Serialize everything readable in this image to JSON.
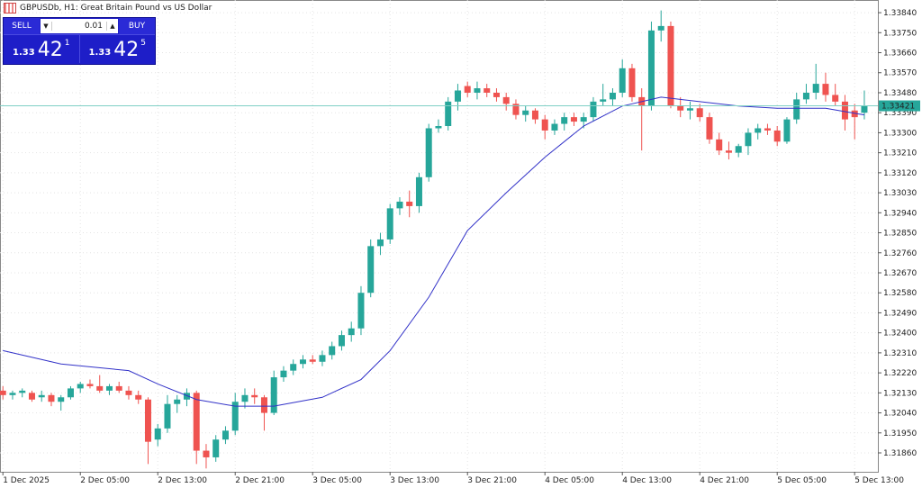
{
  "header": {
    "title": "GBPUSDb, H1:  Great Britain Pound vs US Dollar"
  },
  "trade_panel": {
    "sell_label": "SELL",
    "buy_label": "BUY",
    "volume": "0.01",
    "sell_price": {
      "big": "1.33",
      "pips": "42",
      "point": "1"
    },
    "buy_price": {
      "big": "1.33",
      "pips": "42",
      "point": "5"
    }
  },
  "chart_data": {
    "type": "candlestick",
    "up_color": "#26a69a",
    "down_color": "#ef5350",
    "ma_color": "#3232c8",
    "grid": true,
    "current_price": 1.33421,
    "xlim": [
      -0.3,
      90.4
    ],
    "ylim": [
      1.31775,
      1.33897
    ],
    "xticks": [
      {
        "value": 0,
        "label": "1 Dec 2025"
      },
      {
        "value": 8,
        "label": "2 Dec 05:00"
      },
      {
        "value": 16,
        "label": "2 Dec 13:00"
      },
      {
        "value": 24,
        "label": "2 Dec 21:00"
      },
      {
        "value": 32,
        "label": "3 Dec 05:00"
      },
      {
        "value": 40,
        "label": "3 Dec 13:00"
      },
      {
        "value": 48,
        "label": "3 Dec 21:00"
      },
      {
        "value": 56,
        "label": "4 Dec 05:00"
      },
      {
        "value": 64,
        "label": "4 Dec 13:00"
      },
      {
        "value": 72,
        "label": "4 Dec 21:00"
      },
      {
        "value": 80,
        "label": "5 Dec 05:00"
      },
      {
        "value": 88,
        "label": "5 Dec 13:00"
      }
    ],
    "yticks": [
      {
        "value": 1.3384,
        "label": "1.33840"
      },
      {
        "value": 1.3375,
        "label": "1.33750"
      },
      {
        "value": 1.3366,
        "label": "1.33660"
      },
      {
        "value": 1.3357,
        "label": "1.33570"
      },
      {
        "value": 1.3348,
        "label": "1.33480"
      },
      {
        "value": 1.3339,
        "label": "1.33390"
      },
      {
        "value": 1.333,
        "label": "1.33300"
      },
      {
        "value": 1.3321,
        "label": "1.33210"
      },
      {
        "value": 1.3312,
        "label": "1.33120"
      },
      {
        "value": 1.3303,
        "label": "1.33030"
      },
      {
        "value": 1.3294,
        "label": "1.32940"
      },
      {
        "value": 1.3285,
        "label": "1.32850"
      },
      {
        "value": 1.3276,
        "label": "1.32760"
      },
      {
        "value": 1.3267,
        "label": "1.32670"
      },
      {
        "value": 1.3258,
        "label": "1.32580"
      },
      {
        "value": 1.3249,
        "label": "1.32490"
      },
      {
        "value": 1.324,
        "label": "1.32400"
      },
      {
        "value": 1.3231,
        "label": "1.32310"
      },
      {
        "value": 1.3222,
        "label": "1.32220"
      },
      {
        "value": 1.3213,
        "label": "1.32130"
      },
      {
        "value": 1.3204,
        "label": "1.32040"
      },
      {
        "value": 1.3195,
        "label": "1.31950"
      },
      {
        "value": 1.3186,
        "label": "1.31860"
      }
    ],
    "open": [
      1.3214,
      1.3212,
      1.3213,
      1.3213,
      1.3211,
      1.3212,
      1.3209,
      1.3211,
      1.3215,
      1.3217,
      1.3216,
      1.3214,
      1.3216,
      1.3214,
      1.3212,
      1.321,
      1.3192,
      1.3197,
      1.3208,
      1.321,
      1.3213,
      1.3187,
      1.3184,
      1.3192,
      1.3196,
      1.3209,
      1.3212,
      1.3211,
      1.3204,
      1.322,
      1.3223,
      1.3226,
      1.3228,
      1.3227,
      1.323,
      1.3234,
      1.3239,
      1.3242,
      1.3258,
      1.3279,
      1.3282,
      1.3296,
      1.3299,
      1.3297,
      1.331,
      1.3332,
      1.3333,
      1.3344,
      1.3351,
      1.3348,
      1.335,
      1.3348,
      1.3346,
      1.3343,
      1.3338,
      1.334,
      1.3336,
      1.3331,
      1.3334,
      1.3337,
      1.3335,
      1.3337,
      1.3344,
      1.3345,
      1.3348,
      1.3359,
      1.3346,
      1.3342,
      1.3376,
      1.3378,
      1.3342,
      1.334,
      1.3341,
      1.3337,
      1.3327,
      1.3322,
      1.3321,
      1.3324,
      1.333,
      1.3332,
      1.3331,
      1.3326,
      1.3336,
      1.3345,
      1.3348,
      1.3352,
      1.3347,
      1.3344,
      1.334,
      1.3339
    ],
    "high": [
      1.3216,
      1.3214,
      1.3215,
      1.3214,
      1.3214,
      1.3213,
      1.3212,
      1.3216,
      1.3218,
      1.3219,
      1.3221,
      1.3217,
      1.3218,
      1.3216,
      1.3214,
      1.3211,
      1.3199,
      1.3212,
      1.3212,
      1.3215,
      1.3214,
      1.319,
      1.3194,
      1.3198,
      1.3213,
      1.3215,
      1.3215,
      1.3212,
      1.3223,
      1.3225,
      1.3228,
      1.323,
      1.323,
      1.3232,
      1.3236,
      1.3241,
      1.3245,
      1.3261,
      1.3282,
      1.3285,
      1.3298,
      1.3301,
      1.3304,
      1.3312,
      1.3334,
      1.3336,
      1.3346,
      1.3352,
      1.3353,
      1.3353,
      1.3352,
      1.335,
      1.3348,
      1.3345,
      1.3342,
      1.3341,
      1.3338,
      1.3336,
      1.3339,
      1.3339,
      1.3339,
      1.3346,
      1.3352,
      1.335,
      1.3363,
      1.3361,
      1.335,
      1.338,
      1.3385,
      1.338,
      1.3346,
      1.3344,
      1.3343,
      1.3339,
      1.333,
      1.3326,
      1.3325,
      1.3332,
      1.3334,
      1.3334,
      1.3333,
      1.3337,
      1.3348,
      1.3352,
      1.3361,
      1.3357,
      1.3352,
      1.3347,
      1.3343,
      1.3349
    ],
    "low": [
      1.321,
      1.321,
      1.3211,
      1.3209,
      1.3209,
      1.3207,
      1.3205,
      1.321,
      1.3213,
      1.3215,
      1.3213,
      1.3212,
      1.3213,
      1.321,
      1.3208,
      1.3181,
      1.3189,
      1.3195,
      1.3204,
      1.3207,
      1.3181,
      1.3179,
      1.3182,
      1.319,
      1.3194,
      1.3206,
      1.3208,
      1.3196,
      1.3203,
      1.3218,
      1.3221,
      1.3224,
      1.3226,
      1.3225,
      1.3228,
      1.3232,
      1.3236,
      1.3239,
      1.3256,
      1.3275,
      1.328,
      1.3293,
      1.3292,
      1.3294,
      1.3308,
      1.333,
      1.3331,
      1.334,
      1.3346,
      1.3345,
      1.3346,
      1.3344,
      1.334,
      1.3336,
      1.3335,
      1.3334,
      1.3327,
      1.3329,
      1.3331,
      1.3333,
      1.3332,
      1.3335,
      1.3342,
      1.3342,
      1.3346,
      1.3344,
      1.3322,
      1.334,
      1.3371,
      1.3341,
      1.3337,
      1.3336,
      1.3335,
      1.3325,
      1.332,
      1.3318,
      1.3319,
      1.332,
      1.3327,
      1.3329,
      1.3324,
      1.3325,
      1.3334,
      1.3343,
      1.3345,
      1.3344,
      1.3342,
      1.3331,
      1.3327,
      1.3336
    ],
    "close": [
      1.3212,
      1.3213,
      1.3214,
      1.321,
      1.3212,
      1.3209,
      1.3211,
      1.3215,
      1.3217,
      1.3216,
      1.3214,
      1.3216,
      1.3214,
      1.3212,
      1.321,
      1.3191,
      1.3197,
      1.3208,
      1.321,
      1.3213,
      1.3187,
      1.3184,
      1.3192,
      1.3196,
      1.3209,
      1.3212,
      1.3211,
      1.3204,
      1.322,
      1.3223,
      1.3226,
      1.3228,
      1.3227,
      1.323,
      1.3234,
      1.3239,
      1.3242,
      1.3258,
      1.3279,
      1.3282,
      1.3296,
      1.3299,
      1.3297,
      1.331,
      1.3332,
      1.3333,
      1.3344,
      1.3349,
      1.3348,
      1.335,
      1.3348,
      1.3346,
      1.3343,
      1.3338,
      1.334,
      1.3336,
      1.3331,
      1.3334,
      1.3337,
      1.3335,
      1.3337,
      1.3344,
      1.3345,
      1.3348,
      1.3359,
      1.3346,
      1.3342,
      1.3376,
      1.3378,
      1.3342,
      1.334,
      1.3341,
      1.3337,
      1.3327,
      1.3322,
      1.3321,
      1.3324,
      1.333,
      1.3332,
      1.3331,
      1.3326,
      1.3336,
      1.3345,
      1.3348,
      1.3352,
      1.3347,
      1.3344,
      1.3336,
      1.3337,
      1.3342
    ],
    "ma": {
      "x": [
        0,
        6,
        13,
        16,
        20,
        24,
        28,
        33,
        37,
        40,
        44,
        48,
        52,
        56,
        60,
        64,
        68,
        72,
        76,
        80,
        85,
        89
      ],
      "values": [
        1.3232,
        1.3226,
        1.3223,
        1.3217,
        1.321,
        1.3207,
        1.3207,
        1.3211,
        1.3219,
        1.3232,
        1.3256,
        1.3286,
        1.3303,
        1.3319,
        1.3333,
        1.3342,
        1.3346,
        1.3344,
        1.3342,
        1.3341,
        1.3341,
        1.3338
      ]
    }
  }
}
